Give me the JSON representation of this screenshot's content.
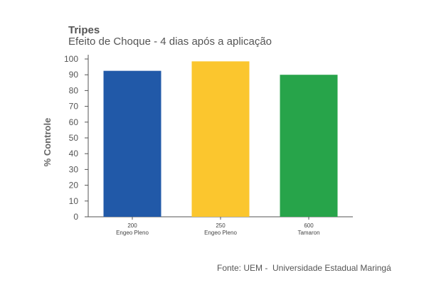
{
  "chart_data": {
    "type": "bar",
    "title": "Tripes",
    "subtitle": "Efeito de Choque - 4 dias após a aplicação",
    "ylabel": "% Controle",
    "xlabel": "",
    "ylim": [
      0,
      100
    ],
    "yticks": [
      0,
      10,
      20,
      30,
      40,
      50,
      60,
      70,
      80,
      90,
      100
    ],
    "categories": [
      {
        "line1": "200",
        "line2": "Engeo Pleno"
      },
      {
        "line1": "250",
        "line2": "Engeo Pleno"
      },
      {
        "line1": "600",
        "line2": "Tamaron"
      }
    ],
    "values": [
      92.5,
      98.5,
      90
    ],
    "colors": [
      "#2159a8",
      "#fbc62e",
      "#27a44a"
    ],
    "grid": false,
    "legend": "none"
  },
  "footer": {
    "source": "Fonte: UEM -  Universidade Estadual Maringá"
  }
}
